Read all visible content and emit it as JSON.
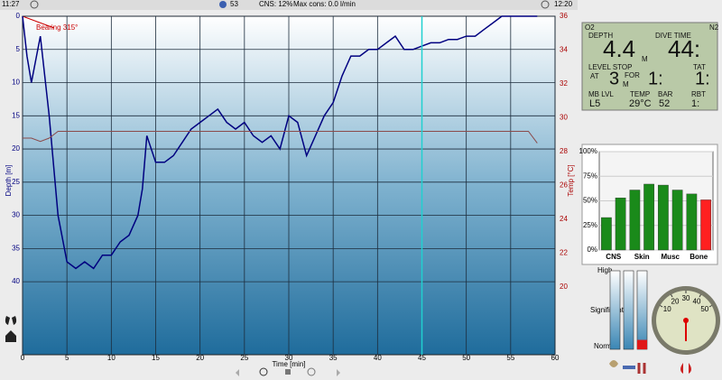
{
  "header": {
    "start_time": "11:27",
    "tissue": "53",
    "cns": "CNS: 12%",
    "max_cons": "Max cons: 0.0 l/min",
    "end_time": "12:20"
  },
  "chart_data": [
    {
      "type": "line",
      "annotation": "Bearing 315°",
      "xlabel": "Time [min]",
      "ylabel": "Depth [m]",
      "y2label": "Temp [°C]",
      "x": [
        0,
        0.5,
        1,
        2,
        3,
        4,
        5,
        6,
        7,
        8,
        9,
        10,
        11,
        12,
        13,
        13.5,
        14,
        15,
        16,
        17,
        18,
        19,
        20,
        21,
        22,
        23,
        24,
        25,
        26,
        27,
        28,
        29,
        30,
        31,
        32,
        33,
        34,
        35,
        36,
        37,
        38,
        39,
        40,
        41,
        42,
        43,
        44,
        45,
        46,
        47,
        48,
        49,
        50,
        51,
        52,
        53,
        54,
        55,
        56,
        57,
        58
      ],
      "series": [
        {
          "name": "Depth",
          "color": "#000080",
          "values": [
            0,
            6,
            10,
            3,
            15,
            30,
            37,
            38,
            37,
            38,
            36,
            36,
            34,
            33,
            30,
            26,
            18,
            22,
            22,
            21,
            19,
            17,
            16,
            15,
            14,
            16,
            17,
            16,
            18,
            19,
            18,
            20,
            15,
            16,
            21,
            18,
            15,
            13,
            9,
            6,
            6,
            5,
            5,
            4,
            3,
            5,
            5,
            4.5,
            4,
            4,
            3.5,
            3.5,
            3,
            3,
            2,
            1,
            0,
            0,
            0,
            0,
            0
          ]
        },
        {
          "name": "Temp",
          "color": "#8b4a4a",
          "axis": "y2",
          "values": [
            28.8,
            28.8,
            28.8,
            28.6,
            28.8,
            29.2,
            29.2,
            29.2,
            29.2,
            29.2,
            29.2,
            29.2,
            29.2,
            29.2,
            29.2,
            29.2,
            29.2,
            29.2,
            29.2,
            29.2,
            29.2,
            29.2,
            29.2,
            29.2,
            29.2,
            29.2,
            29.2,
            29.2,
            29.2,
            29.2,
            29.2,
            29.2,
            29.2,
            29.2,
            29.2,
            29.2,
            29.2,
            29.2,
            29.2,
            29.2,
            29.2,
            29.2,
            29.2,
            29.2,
            29.2,
            29.2,
            29.2,
            29.2,
            29.2,
            29.2,
            29.2,
            29.2,
            29.2,
            29.2,
            29.2,
            29.2,
            29.2,
            29.2,
            29.2,
            29.2,
            28.5
          ]
        }
      ],
      "xlim": [
        0,
        60
      ],
      "xticks": [
        0,
        5,
        10,
        15,
        20,
        25,
        30,
        35,
        40,
        45,
        50,
        55,
        60
      ],
      "ylim": [
        51,
        0
      ],
      "yticks": [
        0,
        5,
        10,
        15,
        20,
        25,
        30,
        35,
        40
      ],
      "y2lim": [
        16,
        36
      ],
      "y2ticks": [
        20,
        22,
        24,
        26,
        28,
        30,
        32,
        34,
        36
      ],
      "cursor": 45,
      "grid": true
    },
    {
      "type": "bar",
      "categories": [
        null,
        "CNS",
        null,
        "Skin",
        null,
        "Musc",
        null,
        "Bone"
      ],
      "values": [
        33,
        53,
        61,
        67,
        66,
        61,
        57,
        51
      ],
      "colors": [
        "#1a8a1a",
        "#1a8a1a",
        "#1a8a1a",
        "#1a8a1a",
        "#1a8a1a",
        "#1a8a1a",
        "#1a8a1a",
        "#ff2020"
      ],
      "ylim": [
        0,
        100
      ],
      "yticks": [
        {
          "value": 0,
          "label": "0%"
        },
        {
          "value": 25,
          "label": "25%"
        },
        {
          "value": 50,
          "label": "50%"
        },
        {
          "value": 75,
          "label": "75%"
        },
        {
          "value": 100,
          "label": "100%"
        }
      ]
    }
  ],
  "lcd": {
    "o2": "O2",
    "n2": "N2",
    "depth_label": "DEPTH",
    "depth": "4.4",
    "depth_unit": "M",
    "dive_time_label": "DIVE TIME",
    "dive_time": "44:",
    "level_stop": "LEVEL STOP",
    "at": "AT",
    "stop_depth": "3",
    "stop_unit": "M",
    "for": "FOR",
    "stop_time": "1:",
    "tat_label": "TAT",
    "tat": "1:",
    "mb_label": "MB LVL",
    "mb": "L5",
    "temp_label": "TEMP",
    "temp": "29°C",
    "bar_label": "BAR",
    "bar": "52",
    "rbt_label": "RBT",
    "rbt": "1:"
  },
  "gauges": {
    "labels": [
      "High",
      "Significant",
      "Normal"
    ],
    "values": [
      0,
      0,
      12
    ],
    "ylim": [
      0,
      100
    ]
  },
  "dial": {
    "ticks": [
      10,
      20,
      30,
      40,
      50
    ]
  }
}
